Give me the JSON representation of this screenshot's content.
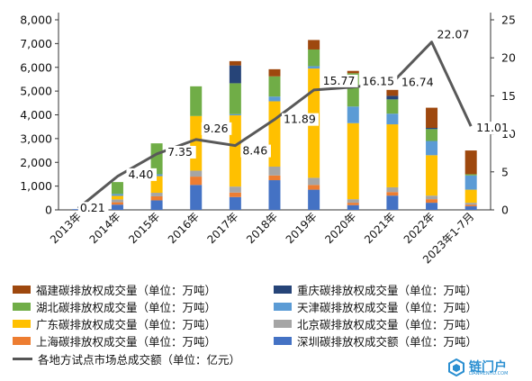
{
  "chart_data": {
    "type": "bar",
    "stacked": true,
    "categories": [
      "2013年",
      "2014年",
      "2015年",
      "2016年",
      "2017年",
      "2018年",
      "2019年",
      "2020年",
      "2021年",
      "2022年",
      "2023年1-7月"
    ],
    "series": [
      {
        "name": "深圳碳排放权成交额（单位：万吨）",
        "color": "#4472c4",
        "values": [
          30,
          220,
          400,
          1050,
          540,
          1250,
          850,
          200,
          600,
          300,
          150
        ]
      },
      {
        "name": "上海碳排放权成交量（单位：万吨）",
        "color": "#ed7d31",
        "values": [
          0,
          100,
          170,
          350,
          190,
          200,
          200,
          100,
          150,
          150,
          60
        ]
      },
      {
        "name": "北京碳排放权成交量（单位：万吨）",
        "color": "#a5a5a5",
        "values": [
          0,
          120,
          150,
          250,
          250,
          370,
          300,
          150,
          200,
          150,
          90
        ]
      },
      {
        "name": "广东碳排放权成交量（单位：万吨）",
        "color": "#ffc000",
        "values": [
          0,
          150,
          700,
          2300,
          3000,
          2750,
          4600,
          3200,
          2650,
          1700,
          550
        ]
      },
      {
        "name": "天津碳排放权成交量（单位：万吨）",
        "color": "#5b9bd5",
        "values": [
          0,
          80,
          80,
          0,
          50,
          200,
          100,
          700,
          450,
          600,
          600
        ]
      },
      {
        "name": "湖北碳排放权成交量（单位：万吨）",
        "color": "#70ad47",
        "values": [
          0,
          500,
          1300,
          1250,
          1300,
          850,
          700,
          1400,
          600,
          500,
          50
        ]
      },
      {
        "name": "重庆碳排放权成交量（单位：万吨）",
        "color": "#264478",
        "values": [
          0,
          0,
          0,
          0,
          750,
          0,
          0,
          0,
          150,
          50,
          0
        ]
      },
      {
        "name": "福建碳排放权成交量（单位：万吨）",
        "color": "#9e480e",
        "values": [
          0,
          0,
          0,
          0,
          180,
          300,
          400,
          100,
          250,
          850,
          1000
        ]
      }
    ],
    "line_series": {
      "name": "各地方试点市场总成交额（单位：亿元）",
      "color": "#595959",
      "values": [
        0.21,
        4.4,
        7.35,
        9.26,
        8.46,
        11.89,
        15.77,
        16.15,
        16.74,
        22.07,
        11.01
      ],
      "labels": [
        "0.21",
        "4.40",
        "7.35",
        "9.26",
        "8.46",
        "11.89",
        "15.77",
        "16.15",
        "16.74",
        "22.07",
        "11.01"
      ]
    },
    "ylim": [
      0,
      8000
    ],
    "y_ticks": [
      "0",
      "1,000",
      "2,000",
      "3,000",
      "4,000",
      "5,000",
      "6,000",
      "7,000",
      "8,000"
    ],
    "y2lim": [
      0,
      25
    ],
    "y2_ticks": [
      "0",
      "5",
      "10",
      "15",
      "20",
      "25"
    ],
    "grid": false,
    "legend_position": "bottom"
  },
  "legend": {
    "items": [
      {
        "label": "福建碳排放权成交量（单位：万吨）",
        "color": "#9e480e"
      },
      {
        "label": "重庆碳排放权成交量（单位：万吨）",
        "color": "#264478"
      },
      {
        "label": "湖北碳排放权成交量（单位：万吨）",
        "color": "#70ad47"
      },
      {
        "label": "天津碳排放权成交量（单位：万吨）",
        "color": "#5b9bd5"
      },
      {
        "label": "广东碳排放权成交量（单位：万吨）",
        "color": "#ffc000"
      },
      {
        "label": "北京碳排放权成交量（单位：万吨）",
        "color": "#a5a5a5"
      },
      {
        "label": "上海碳排放权成交量（单位：万吨）",
        "color": "#ed7d31"
      },
      {
        "label": "深圳碳排放权成交额（单位：万吨）",
        "color": "#4472c4"
      }
    ],
    "line_label": "各地方试点市场总成交额（单位：亿元）"
  },
  "watermark": {
    "brand": "链门户",
    "sub": "LIANMENHU.COM",
    "color": "#2b8fd1"
  }
}
